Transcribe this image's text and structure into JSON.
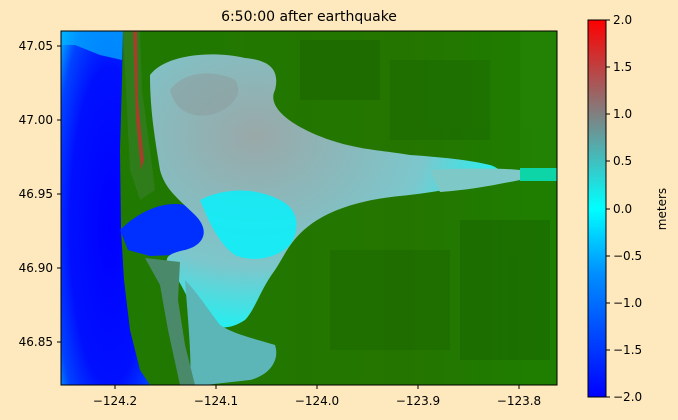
{
  "chart_data": {
    "type": "heatmap",
    "title": "6:50:00 after earthquake",
    "xlabel": "",
    "ylabel": "",
    "xlim": [
      -124.24,
      -123.75
    ],
    "ylim": [
      46.82,
      47.06
    ],
    "x_ticks": [
      {
        "value": -124.2,
        "label": "−124.2"
      },
      {
        "value": -124.1,
        "label": "−124.1"
      },
      {
        "value": -124.0,
        "label": "−124.0"
      },
      {
        "value": -123.9,
        "label": "−123.9"
      },
      {
        "value": -123.8,
        "label": "−123.8"
      }
    ],
    "y_ticks": [
      {
        "value": 46.85,
        "label": "46.85"
      },
      {
        "value": 46.9,
        "label": "46.90"
      },
      {
        "value": 46.95,
        "label": "46.95"
      },
      {
        "value": 47.0,
        "label": "47.00"
      },
      {
        "value": 47.05,
        "label": "47.05"
      }
    ],
    "colorbar": {
      "label": "meters",
      "range": [
        -2.0,
        2.0
      ],
      "colors": [
        "#0000ff",
        "#00ffff",
        "#808080",
        "#ff0000"
      ],
      "ticks": [
        {
          "value": 2.0,
          "label": "2.0"
        },
        {
          "value": 1.5,
          "label": "1.5"
        },
        {
          "value": 1.0,
          "label": "1.0"
        },
        {
          "value": 0.5,
          "label": "0.5"
        },
        {
          "value": 0.0,
          "label": "0.0"
        },
        {
          "value": -0.5,
          "label": "−0.5"
        },
        {
          "value": -1.0,
          "label": "−1.0"
        },
        {
          "value": -1.5,
          "label": "−1.5"
        },
        {
          "value": -2.0,
          "label": "−2.0"
        }
      ]
    },
    "land_color": "#1f7a00",
    "ocean_color": "#0000ff",
    "grid": false
  }
}
